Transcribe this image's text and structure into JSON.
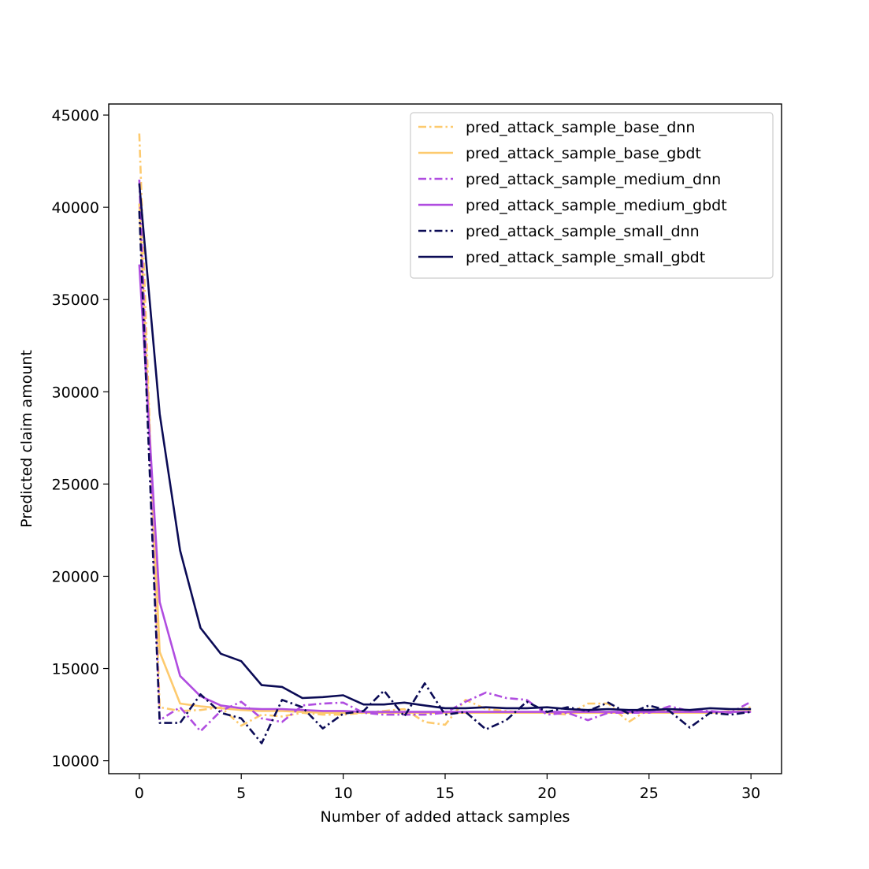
{
  "chart_data": {
    "type": "line",
    "title": "",
    "xlabel": "Number of added attack samples",
    "ylabel": "Predicted claim amount",
    "xlim": [
      -1.5,
      31.5
    ],
    "ylim": [
      9300,
      45600
    ],
    "x_ticks": [
      0,
      5,
      10,
      15,
      20,
      25,
      30
    ],
    "y_ticks": [
      10000,
      15000,
      20000,
      25000,
      30000,
      35000,
      40000,
      45000
    ],
    "grid": false,
    "legend_position": "top-right",
    "x": [
      0,
      1,
      2,
      3,
      4,
      5,
      6,
      7,
      8,
      9,
      10,
      11,
      12,
      13,
      14,
      15,
      16,
      17,
      18,
      19,
      20,
      21,
      22,
      23,
      24,
      25,
      26,
      27,
      28,
      29,
      30
    ],
    "series": [
      {
        "name": "pred_attack_sample_base_dnn",
        "color": "#fdca6e",
        "dash": "dashdot",
        "values": [
          44000,
          12900,
          12700,
          12750,
          12900,
          11900,
          12500,
          12400,
          12600,
          12500,
          12500,
          12600,
          12700,
          12800,
          12100,
          11950,
          13300,
          12800,
          12700,
          12600,
          12600,
          12500,
          13100,
          13100,
          12100,
          12800,
          12700,
          12700,
          12600,
          12700,
          12900
        ]
      },
      {
        "name": "pred_attack_sample_base_gbdt",
        "color": "#fdca6e",
        "dash": "solid",
        "values": [
          40200,
          15900,
          13100,
          12950,
          12850,
          12750,
          12700,
          12700,
          12650,
          12600,
          12600,
          12600,
          12600,
          12600,
          12600,
          12600,
          12600,
          12600,
          12600,
          12600,
          12600,
          12600,
          12600,
          12600,
          12600,
          12600,
          12600,
          12600,
          12600,
          12650,
          12700
        ]
      },
      {
        "name": "pred_attack_sample_medium_dnn",
        "color": "#b04de0",
        "dash": "dashdot",
        "values": [
          41500,
          12200,
          12900,
          11600,
          12700,
          13200,
          12300,
          12100,
          13000,
          13100,
          13150,
          12600,
          12500,
          12500,
          12500,
          12600,
          13200,
          13700,
          13400,
          13300,
          12500,
          12600,
          12200,
          12600,
          12600,
          12600,
          12950,
          12700,
          12700,
          12600,
          13200
        ]
      },
      {
        "name": "pred_attack_sample_medium_gbdt",
        "color": "#b04de0",
        "dash": "solid",
        "values": [
          36900,
          18600,
          14600,
          13500,
          13000,
          12850,
          12800,
          12800,
          12750,
          12700,
          12700,
          12650,
          12650,
          12650,
          12650,
          12650,
          12650,
          12650,
          12650,
          12650,
          12650,
          12650,
          12650,
          12650,
          12650,
          12650,
          12650,
          12650,
          12650,
          12650,
          12650
        ]
      },
      {
        "name": "pred_attack_sample_small_dnn",
        "color": "#0b0b55",
        "dash": "dashdot",
        "values": [
          39800,
          12050,
          12050,
          13600,
          12600,
          12300,
          10950,
          13300,
          12900,
          11750,
          12550,
          12700,
          13800,
          12400,
          14200,
          12500,
          12650,
          11700,
          12200,
          13200,
          12650,
          12900,
          12700,
          13150,
          12550,
          13000,
          12700,
          11800,
          12600,
          12500,
          12650
        ]
      },
      {
        "name": "pred_attack_sample_small_gbdt",
        "color": "#0b0b55",
        "dash": "solid",
        "values": [
          41300,
          28800,
          21400,
          17200,
          15800,
          15400,
          14100,
          14000,
          13400,
          13450,
          13550,
          13050,
          13050,
          13150,
          13000,
          12850,
          12850,
          12900,
          12850,
          12850,
          12900,
          12800,
          12750,
          12800,
          12750,
          12750,
          12800,
          12750,
          12850,
          12800,
          12800
        ]
      }
    ]
  }
}
